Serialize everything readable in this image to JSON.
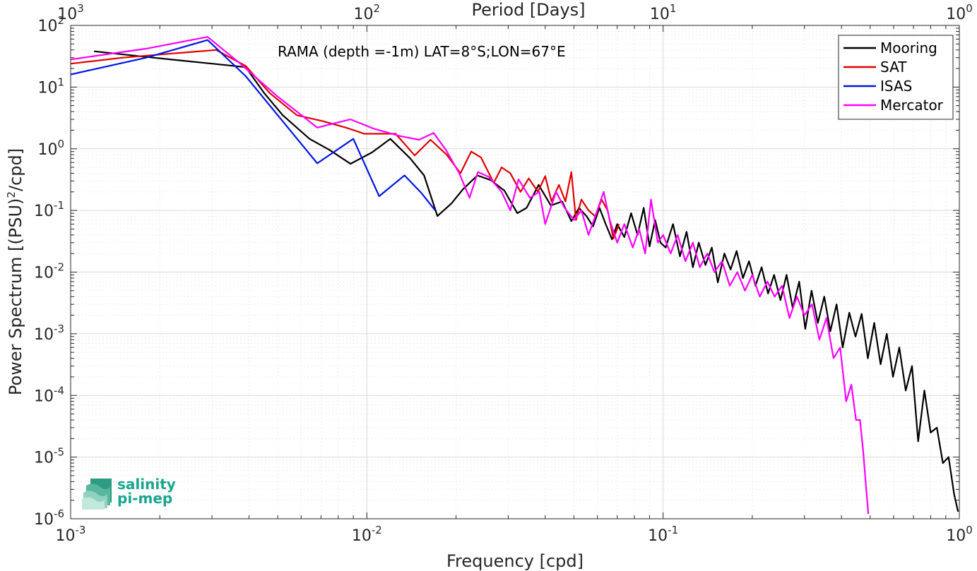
{
  "chart_data": {
    "type": "line",
    "annotation": "RAMA (depth =-1m) LAT=8°S;LON=67°E",
    "xlabel": "Frequency [cpd]",
    "ylabel": "Power Spectrum [(PSU)²/cpd]",
    "top_xlabel": "Period [Days]",
    "x_scale": "log",
    "y_scale": "log",
    "xlim": [
      0.001,
      1
    ],
    "ylim": [
      1e-06,
      100
    ],
    "grid": true,
    "legend_position": "top-right",
    "x_ticks": [
      {
        "value": 0.001,
        "base": "10",
        "exp": "-3"
      },
      {
        "value": 0.01,
        "base": "10",
        "exp": "-2"
      },
      {
        "value": 0.1,
        "base": "10",
        "exp": "-1"
      },
      {
        "value": 1,
        "base": "10",
        "exp": "0"
      }
    ],
    "y_ticks": [
      {
        "value": 1e-06,
        "base": "10",
        "exp": "-6"
      },
      {
        "value": 1e-05,
        "base": "10",
        "exp": "-5"
      },
      {
        "value": 0.0001,
        "base": "10",
        "exp": "-4"
      },
      {
        "value": 0.001,
        "base": "10",
        "exp": "-3"
      },
      {
        "value": 0.01,
        "base": "10",
        "exp": "-2"
      },
      {
        "value": 0.1,
        "base": "10",
        "exp": "-1"
      },
      {
        "value": 1,
        "base": "10",
        "exp": "0"
      },
      {
        "value": 10,
        "base": "10",
        "exp": "1"
      },
      {
        "value": 100,
        "base": "10",
        "exp": "2"
      }
    ],
    "top_ticks": [
      {
        "value": 0.001,
        "base": "10",
        "exp": "3"
      },
      {
        "value": 0.01,
        "base": "10",
        "exp": "2"
      },
      {
        "value": 0.1,
        "base": "10",
        "exp": "1"
      },
      {
        "value": 1,
        "base": "10",
        "exp": "0"
      }
    ],
    "series": [
      {
        "name": "Mooring",
        "color": "#000000",
        "points": [
          [
            0.0012,
            38
          ],
          [
            0.0019,
            30
          ],
          [
            0.003,
            24
          ],
          [
            0.0039,
            21
          ],
          [
            0.0045,
            8
          ],
          [
            0.0052,
            3.5
          ],
          [
            0.0064,
            1.45
          ],
          [
            0.0075,
            0.95
          ],
          [
            0.0088,
            0.57
          ],
          [
            0.0104,
            0.87
          ],
          [
            0.012,
            1.45
          ],
          [
            0.014,
            0.7
          ],
          [
            0.0156,
            0.37
          ],
          [
            0.0173,
            0.081
          ],
          [
            0.0193,
            0.13
          ],
          [
            0.0211,
            0.22
          ],
          [
            0.0236,
            0.37
          ],
          [
            0.0262,
            0.31
          ],
          [
            0.0291,
            0.21
          ],
          [
            0.0322,
            0.09
          ],
          [
            0.0346,
            0.11
          ],
          [
            0.038,
            0.26
          ],
          [
            0.0418,
            0.12
          ],
          [
            0.0456,
            0.14
          ],
          [
            0.049,
            0.067
          ],
          [
            0.052,
            0.11
          ],
          [
            0.0552,
            0.08
          ],
          [
            0.058,
            0.055
          ],
          [
            0.061,
            0.11
          ],
          [
            0.064,
            0.06
          ],
          [
            0.0672,
            0.034
          ],
          [
            0.07,
            0.06
          ],
          [
            0.074,
            0.037
          ],
          [
            0.078,
            0.09
          ],
          [
            0.082,
            0.04
          ],
          [
            0.086,
            0.11
          ],
          [
            0.09,
            0.026
          ],
          [
            0.094,
            0.07
          ],
          [
            0.098,
            0.03
          ],
          [
            0.102,
            0.025
          ],
          [
            0.108,
            0.06
          ],
          [
            0.114,
            0.018
          ],
          [
            0.12,
            0.045
          ],
          [
            0.126,
            0.012
          ],
          [
            0.132,
            0.03
          ],
          [
            0.139,
            0.013
          ],
          [
            0.146,
            0.025
          ],
          [
            0.153,
            0.0068
          ],
          [
            0.161,
            0.02
          ],
          [
            0.169,
            0.011
          ],
          [
            0.177,
            0.022
          ],
          [
            0.186,
            0.008
          ],
          [
            0.195,
            0.015
          ],
          [
            0.205,
            0.006
          ],
          [
            0.215,
            0.012
          ],
          [
            0.226,
            0.0045
          ],
          [
            0.237,
            0.009
          ],
          [
            0.249,
            0.0035
          ],
          [
            0.261,
            0.009
          ],
          [
            0.274,
            0.0026
          ],
          [
            0.288,
            0.007
          ],
          [
            0.302,
            0.0012
          ],
          [
            0.317,
            0.005
          ],
          [
            0.333,
            0.0015
          ],
          [
            0.35,
            0.004
          ],
          [
            0.367,
            0.0011
          ],
          [
            0.385,
            0.003
          ],
          [
            0.404,
            0.0006
          ],
          [
            0.425,
            0.0022
          ],
          [
            0.446,
            0.0009
          ],
          [
            0.468,
            0.0021
          ],
          [
            0.491,
            0.0004
          ],
          [
            0.516,
            0.0015
          ],
          [
            0.542,
            0.00032
          ],
          [
            0.569,
            0.001
          ],
          [
            0.597,
            0.0002
          ],
          [
            0.627,
            0.0006
          ],
          [
            0.659,
            0.00012
          ],
          [
            0.692,
            0.0003
          ],
          [
            0.726,
            1.8e-05
          ],
          [
            0.762,
            0.00012
          ],
          [
            0.8,
            2.5e-05
          ],
          [
            0.84,
            3e-05
          ],
          [
            0.88,
            8e-06
          ],
          [
            0.92,
            1e-05
          ],
          [
            0.96,
            2.5e-06
          ],
          [
            0.99,
            1.3e-06
          ]
        ]
      },
      {
        "name": "SAT",
        "color": "#e00000",
        "points": [
          [
            0.001,
            24
          ],
          [
            0.0015,
            30
          ],
          [
            0.0022,
            35
          ],
          [
            0.0031,
            40
          ],
          [
            0.0039,
            22
          ],
          [
            0.0047,
            8
          ],
          [
            0.0058,
            3.5
          ],
          [
            0.0071,
            2.8
          ],
          [
            0.0085,
            2.2
          ],
          [
            0.0098,
            1.75
          ],
          [
            0.0125,
            1.75
          ],
          [
            0.0145,
            0.78
          ],
          [
            0.0164,
            1.4
          ],
          [
            0.0186,
            0.8
          ],
          [
            0.0207,
            0.4
          ],
          [
            0.0225,
            0.9
          ],
          [
            0.0243,
            0.72
          ],
          [
            0.0268,
            0.28
          ],
          [
            0.0285,
            0.5
          ],
          [
            0.0305,
            0.4
          ],
          [
            0.033,
            0.2
          ],
          [
            0.0352,
            0.33
          ],
          [
            0.0378,
            0.2
          ],
          [
            0.04,
            0.36
          ],
          [
            0.042,
            0.14
          ],
          [
            0.0445,
            0.26
          ],
          [
            0.0468,
            0.14
          ],
          [
            0.049,
            0.42
          ],
          [
            0.0508,
            0.07
          ],
          [
            0.053,
            0.15
          ],
          [
            0.056,
            0.1
          ],
          [
            0.059,
            0.08
          ],
          [
            0.062,
            0.15
          ],
          [
            0.065,
            0.1
          ],
          [
            0.068,
            0.035
          ],
          [
            0.071,
            0.06
          ]
        ]
      },
      {
        "name": "ISAS",
        "color": "#0014e6",
        "points": [
          [
            0.001,
            16
          ],
          [
            0.0018,
            30
          ],
          [
            0.0029,
            58
          ],
          [
            0.0039,
            15
          ],
          [
            0.005,
            3.5
          ],
          [
            0.0068,
            0.58
          ],
          [
            0.009,
            1.45
          ],
          [
            0.011,
            0.17
          ],
          [
            0.0134,
            0.37
          ],
          [
            0.0153,
            0.19
          ],
          [
            0.017,
            0.1
          ]
        ]
      },
      {
        "name": "Mercator",
        "color": "#ff00ff",
        "points": [
          [
            0.001,
            28
          ],
          [
            0.0018,
            42
          ],
          [
            0.0029,
            65
          ],
          [
            0.0037,
            25
          ],
          [
            0.005,
            7
          ],
          [
            0.0068,
            2.2
          ],
          [
            0.0088,
            3.0
          ],
          [
            0.0106,
            2.1
          ],
          [
            0.013,
            1.6
          ],
          [
            0.015,
            1.4
          ],
          [
            0.0168,
            1.8
          ],
          [
            0.0185,
            0.95
          ],
          [
            0.0205,
            0.4
          ],
          [
            0.0222,
            0.16
          ],
          [
            0.0237,
            0.42
          ],
          [
            0.0258,
            0.35
          ],
          [
            0.0285,
            0.2
          ],
          [
            0.0305,
            0.1
          ],
          [
            0.0325,
            0.32
          ],
          [
            0.0355,
            0.16
          ],
          [
            0.0382,
            0.2
          ],
          [
            0.04,
            0.06
          ],
          [
            0.0435,
            0.2
          ],
          [
            0.0465,
            0.11
          ],
          [
            0.05,
            0.07
          ],
          [
            0.053,
            0.1
          ],
          [
            0.056,
            0.04
          ],
          [
            0.0595,
            0.09
          ],
          [
            0.063,
            0.2
          ],
          [
            0.066,
            0.07
          ],
          [
            0.07,
            0.03
          ],
          [
            0.074,
            0.06
          ],
          [
            0.079,
            0.025
          ],
          [
            0.083,
            0.05
          ],
          [
            0.087,
            0.02
          ],
          [
            0.091,
            0.15
          ],
          [
            0.096,
            0.03
          ],
          [
            0.1,
            0.04
          ],
          [
            0.106,
            0.02
          ],
          [
            0.112,
            0.04
          ],
          [
            0.119,
            0.015
          ],
          [
            0.126,
            0.03
          ],
          [
            0.133,
            0.012
          ],
          [
            0.141,
            0.02
          ],
          [
            0.149,
            0.01
          ],
          [
            0.158,
            0.015
          ],
          [
            0.168,
            0.006
          ],
          [
            0.178,
            0.01
          ],
          [
            0.189,
            0.005
          ],
          [
            0.2,
            0.009
          ],
          [
            0.212,
            0.004
          ],
          [
            0.225,
            0.007
          ],
          [
            0.238,
            0.004
          ],
          [
            0.252,
            0.006
          ],
          [
            0.267,
            0.0018
          ],
          [
            0.283,
            0.004
          ],
          [
            0.3,
            0.002
          ],
          [
            0.318,
            0.003
          ],
          [
            0.337,
            0.0008
          ],
          [
            0.356,
            0.0018
          ],
          [
            0.376,
            0.0004
          ],
          [
            0.396,
            0.0006
          ],
          [
            0.415,
            8e-05
          ],
          [
            0.432,
            0.00015
          ],
          [
            0.448,
            4e-05
          ],
          [
            0.462,
            4e-05
          ],
          [
            0.474,
            1.2e-05
          ],
          [
            0.485,
            3e-06
          ],
          [
            0.493,
            1.2e-06
          ]
        ]
      }
    ]
  },
  "logo": {
    "line1": "salinity",
    "line2": "pi-mep"
  }
}
